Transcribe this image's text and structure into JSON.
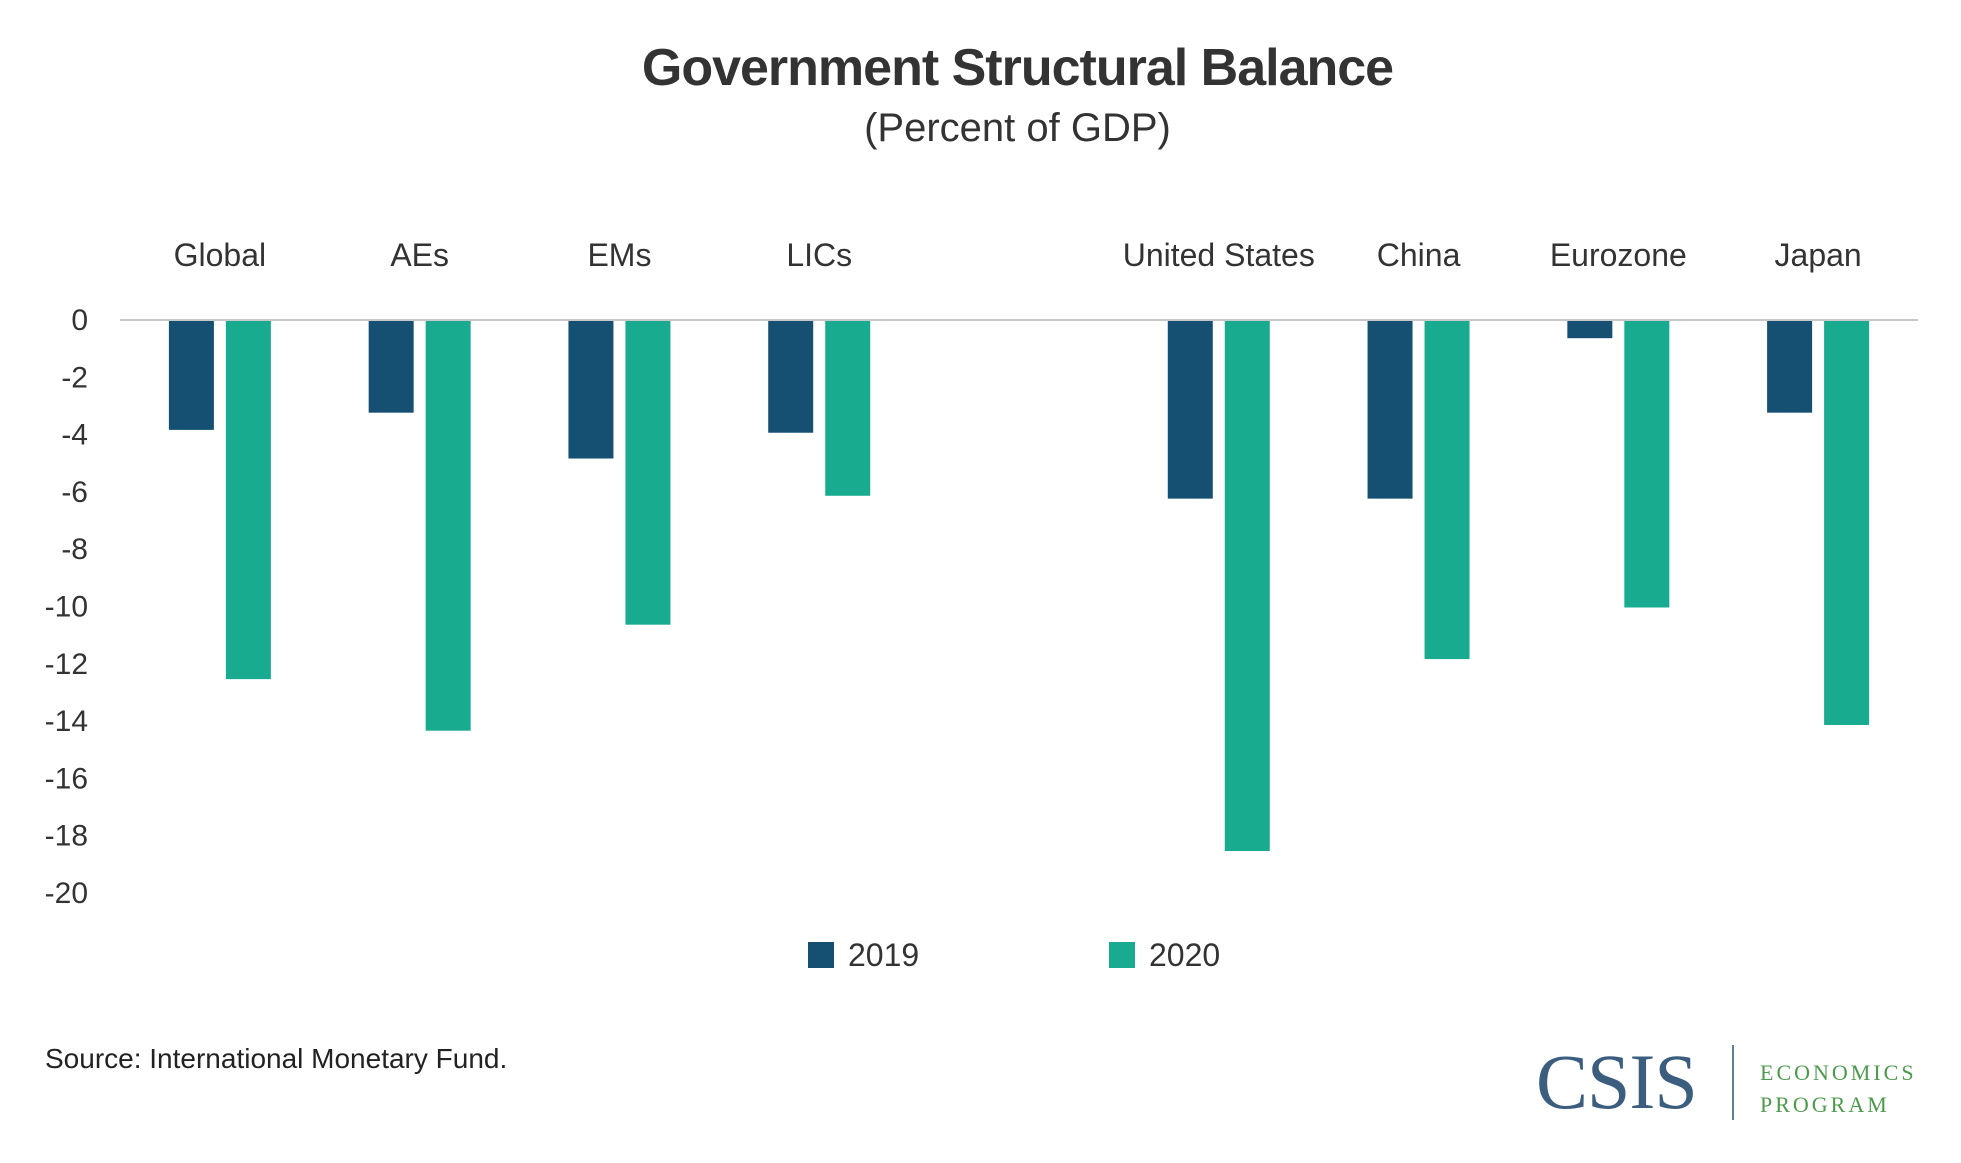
{
  "header": {
    "title": "Government Structural Balance",
    "subtitle": "(Percent of GDP)"
  },
  "footer": {
    "source": "Source: International Monetary Fund.",
    "logo": {
      "wordmark": "CSIS",
      "line1": "ECONOMICS",
      "line2": "PROGRAM",
      "wordmark_color": "#3b5e7f",
      "program_color": "#4c9a4c"
    }
  },
  "chart_data": {
    "type": "bar",
    "title": "Government Structural Balance",
    "subtitle": "(Percent of GDP)",
    "xlabel": "",
    "ylabel": "",
    "categories": [
      "Global",
      "AEs",
      "EMs",
      "LICs",
      "",
      "United States",
      "China",
      "Eurozone",
      "Japan"
    ],
    "series": [
      {
        "name": "2019",
        "color": "#154f72",
        "values": [
          -3.8,
          -3.2,
          -4.8,
          -3.9,
          null,
          -6.2,
          -6.2,
          -0.6,
          -3.2
        ]
      },
      {
        "name": "2020",
        "color": "#18ab8f",
        "values": [
          -12.5,
          -14.3,
          -10.6,
          -6.1,
          null,
          -18.5,
          -11.8,
          -10.0,
          -14.1
        ]
      }
    ],
    "ylim": [
      -20,
      0
    ],
    "yticks": [
      0,
      -2,
      -4,
      -6,
      -8,
      -10,
      -12,
      -14,
      -16,
      -18,
      -20
    ],
    "category_labels_position": "top",
    "grid": false,
    "baseline_color": "#c8c8c8",
    "legend": {
      "position": "bottom-center",
      "entries": [
        "2019",
        "2020"
      ]
    }
  }
}
